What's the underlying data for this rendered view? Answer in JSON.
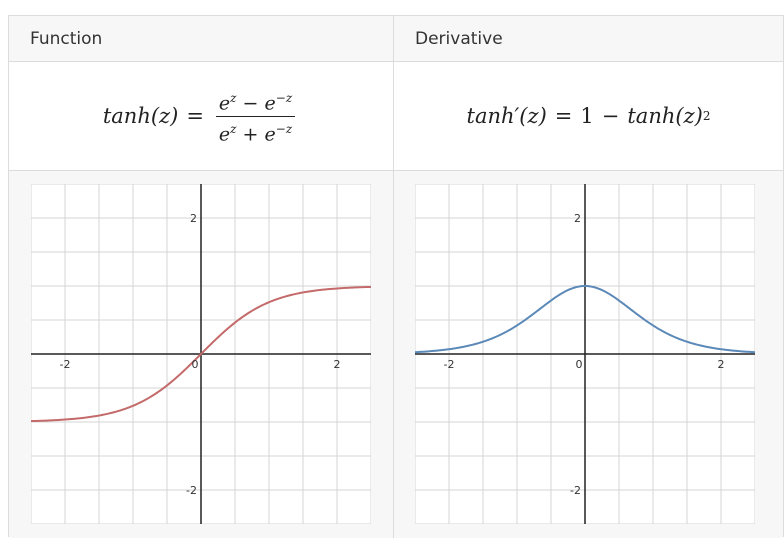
{
  "headers": {
    "function": "Function",
    "derivative": "Derivative"
  },
  "formulas": {
    "function": {
      "lhs": "tanh(z)",
      "equals": "=",
      "num_a": "e",
      "num_a_exp": "z",
      "num_op": "−",
      "num_b": "e",
      "num_b_exp": "−z",
      "den_a": "e",
      "den_a_exp": "z",
      "den_op": "+",
      "den_b": "e",
      "den_b_exp": "−z"
    },
    "derivative": {
      "lhs": "tanh′(z)",
      "equals": "=",
      "one": "1",
      "minus": "−",
      "rhs": "tanh(z)",
      "exp": "2"
    }
  },
  "plots": {
    "function": {
      "curve_color": "#c46a6a",
      "tick_labels": {
        "x_neg": "-2",
        "x_zero": "0",
        "x_pos": "2",
        "y_pos": "2",
        "y_neg": "-2"
      }
    },
    "derivative": {
      "curve_color": "#5b89b8",
      "tick_labels": {
        "x_neg": "-2",
        "x_zero": "0",
        "x_pos": "2",
        "y_pos": "2",
        "y_neg": "-2"
      }
    }
  },
  "chart_data": [
    {
      "type": "line",
      "title": "tanh(z)",
      "function": "tanh",
      "xlim": [
        -2.5,
        2.5
      ],
      "ylim": [
        -2.5,
        2.5
      ],
      "grid": true,
      "xticks": [
        -2,
        0,
        2
      ],
      "yticks": [
        -2,
        2
      ],
      "series": [
        {
          "name": "tanh(z)",
          "x": [
            -2.5,
            -2,
            -1,
            0,
            1,
            2,
            2.5
          ],
          "y": [
            -0.99,
            -0.96,
            -0.76,
            0,
            0.76,
            0.96,
            0.99
          ]
        }
      ]
    },
    {
      "type": "line",
      "title": "tanh'(z)",
      "function": "dtanh",
      "xlim": [
        -2.5,
        2.5
      ],
      "ylim": [
        -2.5,
        2.5
      ],
      "grid": true,
      "xticks": [
        -2,
        0,
        2
      ],
      "yticks": [
        -2,
        2
      ],
      "series": [
        {
          "name": "tanh'(z)",
          "x": [
            -2.5,
            -2,
            -1,
            0,
            1,
            2,
            2.5
          ],
          "y": [
            0.03,
            0.07,
            0.42,
            1,
            0.42,
            0.07,
            0.03
          ]
        }
      ]
    }
  ]
}
